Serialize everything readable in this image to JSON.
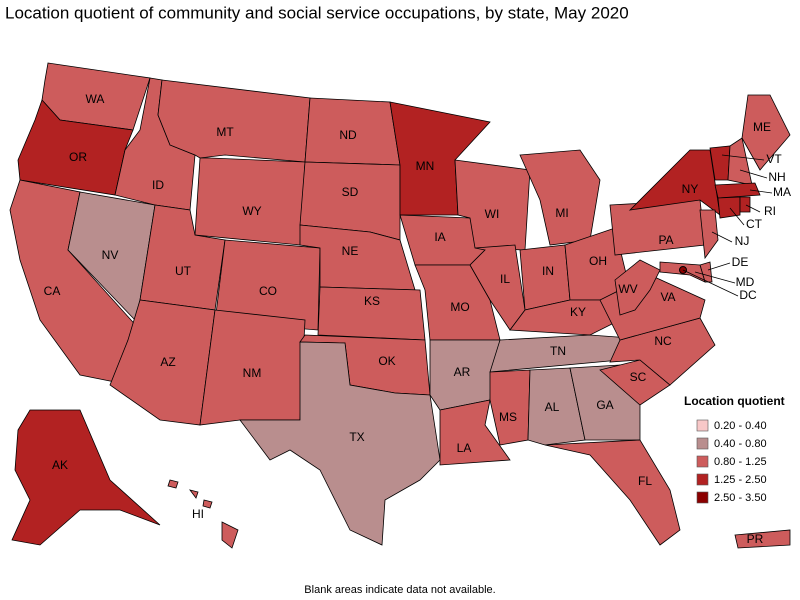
{
  "title": "Location quotient of community and social service occupations, by state, May 2020",
  "footnote": "Blank areas indicate data not available.",
  "legend": {
    "title": "Location quotient",
    "bins": [
      {
        "label": "0.20 - 0.40",
        "color": "#f8c8c8"
      },
      {
        "label": "0.40 - 0.80",
        "color": "#b98e8e"
      },
      {
        "label": "0.80 - 1.25",
        "color": "#cd5c5c"
      },
      {
        "label": "1.25 - 2.50",
        "color": "#b22222"
      },
      {
        "label": "2.50 - 3.50",
        "color": "#8b0000"
      }
    ]
  },
  "states": [
    {
      "label": "WA",
      "bin": 2
    },
    {
      "label": "OR",
      "bin": 3
    },
    {
      "label": "CA",
      "bin": 2
    },
    {
      "label": "NV",
      "bin": 1
    },
    {
      "label": "ID",
      "bin": 2
    },
    {
      "label": "MT",
      "bin": 2
    },
    {
      "label": "WY",
      "bin": 2
    },
    {
      "label": "UT",
      "bin": 2
    },
    {
      "label": "CO",
      "bin": 2
    },
    {
      "label": "AZ",
      "bin": 2
    },
    {
      "label": "NM",
      "bin": 2
    },
    {
      "label": "ND",
      "bin": 2
    },
    {
      "label": "SD",
      "bin": 2
    },
    {
      "label": "NE",
      "bin": 2
    },
    {
      "label": "KS",
      "bin": 2
    },
    {
      "label": "OK",
      "bin": 2
    },
    {
      "label": "TX",
      "bin": 1
    },
    {
      "label": "MN",
      "bin": 3
    },
    {
      "label": "IA",
      "bin": 2
    },
    {
      "label": "MO",
      "bin": 2
    },
    {
      "label": "AR",
      "bin": 1
    },
    {
      "label": "LA",
      "bin": 2
    },
    {
      "label": "WI",
      "bin": 2
    },
    {
      "label": "IL",
      "bin": 2
    },
    {
      "label": "MI",
      "bin": 2
    },
    {
      "label": "IN",
      "bin": 2
    },
    {
      "label": "OH",
      "bin": 2
    },
    {
      "label": "KY",
      "bin": 2
    },
    {
      "label": "TN",
      "bin": 1
    },
    {
      "label": "MS",
      "bin": 2
    },
    {
      "label": "AL",
      "bin": 1
    },
    {
      "label": "GA",
      "bin": 1
    },
    {
      "label": "FL",
      "bin": 2
    },
    {
      "label": "SC",
      "bin": 2
    },
    {
      "label": "NC",
      "bin": 2
    },
    {
      "label": "VA",
      "bin": 2
    },
    {
      "label": "WV",
      "bin": 2
    },
    {
      "label": "PA",
      "bin": 2
    },
    {
      "label": "NY",
      "bin": 3
    },
    {
      "label": "VT",
      "bin": 3
    },
    {
      "label": "NH",
      "bin": 2
    },
    {
      "label": "ME",
      "bin": 2
    },
    {
      "label": "MA",
      "bin": 3
    },
    {
      "label": "CT",
      "bin": 3
    },
    {
      "label": "RI",
      "bin": 3
    },
    {
      "label": "NJ",
      "bin": 2
    },
    {
      "label": "DE",
      "bin": 2
    },
    {
      "label": "MD",
      "bin": 2
    },
    {
      "label": "DC",
      "bin": 4
    },
    {
      "label": "AK",
      "bin": 3
    },
    {
      "label": "HI",
      "bin": 2
    },
    {
      "label": "PR",
      "bin": 2
    }
  ]
}
